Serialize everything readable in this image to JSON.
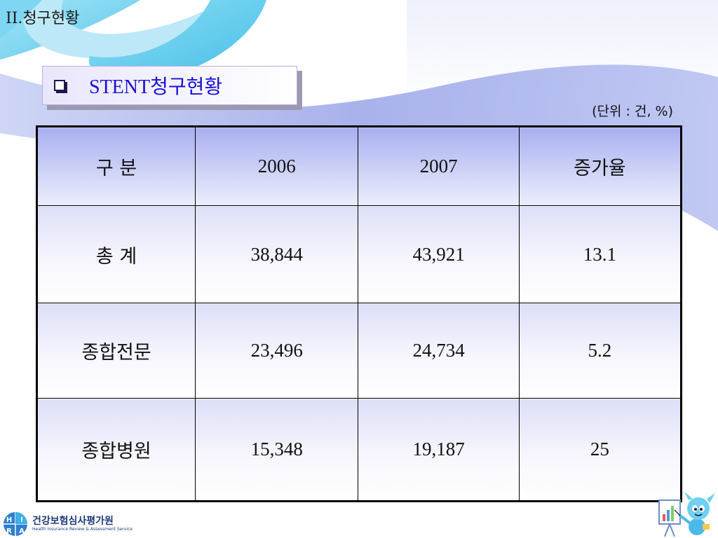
{
  "breadcrumb": "II.청구현황",
  "title": "STENT청구현황",
  "unit_note": "(단위 : 건, %)",
  "table": {
    "headers": [
      "구 분",
      "2006",
      "2007",
      "증가율"
    ],
    "rows": [
      [
        "총 계",
        "38,844",
        "43,921",
        "13.1"
      ],
      [
        "종합전문",
        "23,496",
        "24,734",
        "5.2"
      ],
      [
        "종합병원",
        "15,348",
        "19,187",
        "25"
      ]
    ]
  },
  "logo": {
    "letters": [
      "H",
      "I",
      "R",
      "A"
    ],
    "korean": "건강보험심사평가원",
    "english": "Health Insurance Review & Assessment Service"
  },
  "colors": {
    "title_text": "#1a0fd6",
    "header_fill_top": "#a9aff0",
    "background_swoosh": "#a8b4ec",
    "accent_cyan": "#6fd0ef"
  }
}
